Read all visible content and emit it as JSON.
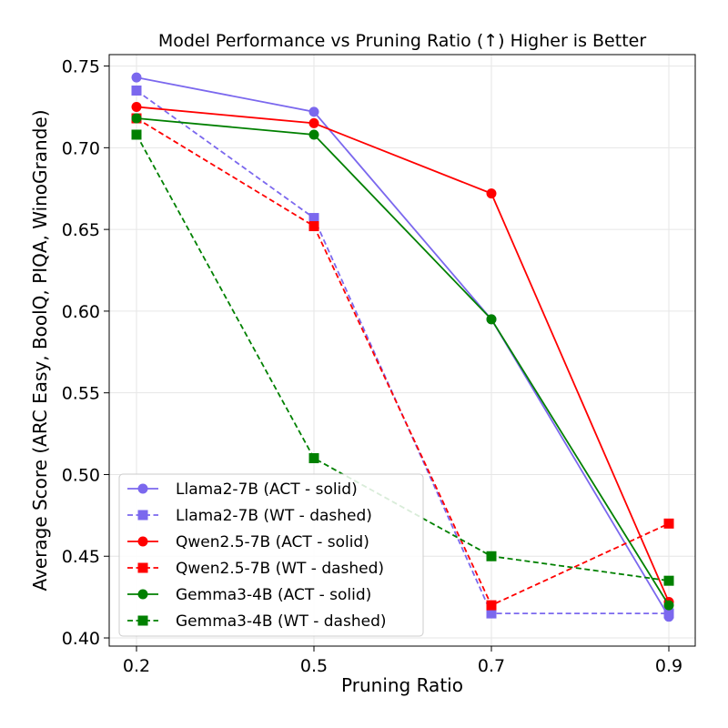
{
  "chart_data": {
    "type": "line",
    "title": "Model Performance vs Pruning Ratio (↑) Higher is Better",
    "xlabel": "Pruning Ratio",
    "ylabel": "Average Score (ARC Easy, BoolQ, PIQA, WinoGrande)",
    "categories": [
      "0.2",
      "0.5",
      "0.7",
      "0.9"
    ],
    "ylim": [
      0.395,
      0.757
    ],
    "yticks": [
      "0.40",
      "0.45",
      "0.50",
      "0.55",
      "0.60",
      "0.65",
      "0.70",
      "0.75"
    ],
    "ytick_values": [
      0.4,
      0.45,
      0.5,
      0.55,
      0.6,
      0.65,
      0.7,
      0.75
    ],
    "grid": true,
    "legend_position": "lower-left",
    "series": [
      {
        "name": "Llama2-7B (ACT - solid)",
        "values": [
          0.743,
          0.722,
          0.595,
          0.413
        ],
        "color": "#7b68ee",
        "style": "solid",
        "marker": "circle"
      },
      {
        "name": "Llama2-7B (WT - dashed)",
        "values": [
          0.735,
          0.657,
          0.415,
          0.415
        ],
        "color": "#7b68ee",
        "style": "dashed",
        "marker": "square"
      },
      {
        "name": "Qwen2.5-7B (ACT - solid)",
        "values": [
          0.725,
          0.715,
          0.672,
          0.422
        ],
        "color": "#ff0000",
        "style": "solid",
        "marker": "circle"
      },
      {
        "name": "Qwen2.5-7B (WT - dashed)",
        "values": [
          0.718,
          0.652,
          0.42,
          0.47
        ],
        "color": "#ff0000",
        "style": "dashed",
        "marker": "square"
      },
      {
        "name": "Gemma3-4B (ACT - solid)",
        "values": [
          0.718,
          0.708,
          0.595,
          0.42
        ],
        "color": "#008000",
        "style": "solid",
        "marker": "circle"
      },
      {
        "name": "Gemma3-4B (WT - dashed)",
        "values": [
          0.708,
          0.51,
          0.45,
          0.435
        ],
        "color": "#008000",
        "style": "dashed",
        "marker": "square"
      }
    ]
  }
}
